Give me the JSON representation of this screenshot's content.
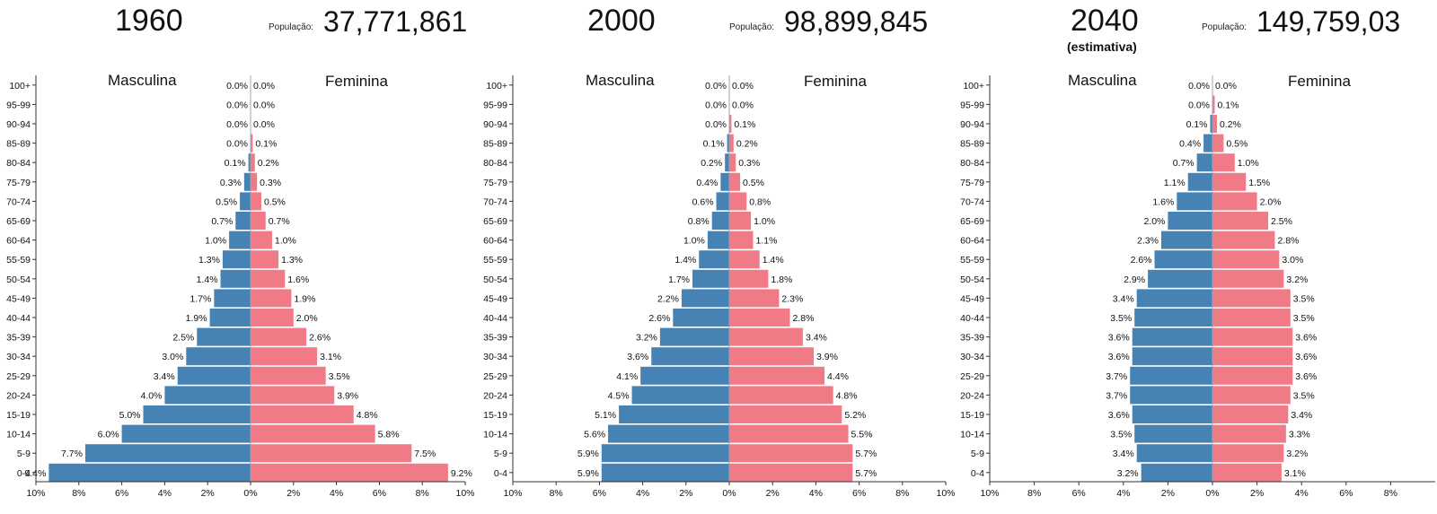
{
  "population_label": "População:",
  "colors": {
    "male": "#4682b4",
    "female": "#f07a86",
    "axis": "#333333"
  },
  "chart_data": [
    {
      "type": "bar",
      "title": "1960",
      "subtitle": "",
      "population": "37,771,861",
      "series": [
        {
          "name": "Masculina",
          "values": [
            9.4,
            7.7,
            6.0,
            5.0,
            4.0,
            3.4,
            3.0,
            2.5,
            1.9,
            1.7,
            1.4,
            1.3,
            1.0,
            0.7,
            0.5,
            0.3,
            0.1,
            0.0,
            0.0,
            0.0,
            0.0
          ],
          "labels": [
            "9.4%",
            "7.7%",
            "6.0%",
            "5.0%",
            "4.0%",
            "3.4%",
            "3.0%",
            "2.5%",
            "1.9%",
            "1.7%",
            "1.4%",
            "1.3%",
            "1.0%",
            "0.7%",
            "0.5%",
            "0.3%",
            "0.1%",
            "0.0%",
            "0.0%",
            "0.0%",
            "0.0%"
          ]
        },
        {
          "name": "Feminina",
          "values": [
            9.2,
            7.5,
            5.8,
            4.8,
            3.9,
            3.5,
            3.1,
            2.6,
            2.0,
            1.9,
            1.6,
            1.3,
            1.0,
            0.7,
            0.5,
            0.3,
            0.2,
            0.1,
            0.0,
            0.0,
            0.0
          ],
          "labels": [
            "9.2%",
            "7.5%",
            "5.8%",
            "4.8%",
            "3.9%",
            "3.5%",
            "3.1%",
            "2.6%",
            "2.0%",
            "1.9%",
            "1.6%",
            "1.3%",
            "1.0%",
            "0.7%",
            "0.5%",
            "0.3%",
            "0.2%",
            "0.1%",
            "0.0%",
            "0.0%",
            "0.0%"
          ]
        }
      ],
      "x_ticks": [
        "10%",
        "8%",
        "6%",
        "4%",
        "2%",
        "0%",
        "2%",
        "4%",
        "6%",
        "8%",
        "10%"
      ],
      "xlim": [
        -10,
        10
      ]
    },
    {
      "type": "bar",
      "title": "2000",
      "subtitle": "",
      "population": "98,899,845",
      "series": [
        {
          "name": "Masculina",
          "values": [
            5.9,
            5.9,
            5.6,
            5.1,
            4.5,
            4.1,
            3.6,
            3.2,
            2.6,
            2.2,
            1.7,
            1.4,
            1.0,
            0.8,
            0.6,
            0.4,
            0.2,
            0.1,
            0.0,
            0.0,
            0.0
          ],
          "labels": [
            "5.9%",
            "5.9%",
            "5.6%",
            "5.1%",
            "4.5%",
            "4.1%",
            "3.6%",
            "3.2%",
            "2.6%",
            "2.2%",
            "1.7%",
            "1.4%",
            "1.0%",
            "0.8%",
            "0.6%",
            "0.4%",
            "0.2%",
            "0.1%",
            "0.0%",
            "0.0%",
            "0.0%"
          ]
        },
        {
          "name": "Feminina",
          "values": [
            5.7,
            5.7,
            5.5,
            5.2,
            4.8,
            4.4,
            3.9,
            3.4,
            2.8,
            2.3,
            1.8,
            1.4,
            1.1,
            1.0,
            0.8,
            0.5,
            0.3,
            0.2,
            0.1,
            0.0,
            0.0
          ],
          "labels": [
            "5.7%",
            "5.7%",
            "5.5%",
            "5.2%",
            "4.8%",
            "4.4%",
            "3.9%",
            "3.4%",
            "2.8%",
            "2.3%",
            "1.8%",
            "1.4%",
            "1.1%",
            "1.0%",
            "0.8%",
            "0.5%",
            "0.3%",
            "0.2%",
            "0.1%",
            "0.0%",
            "0.0%"
          ]
        }
      ],
      "x_ticks": [
        "10%",
        "8%",
        "6%",
        "4%",
        "2%",
        "0%",
        "2%",
        "4%",
        "6%",
        "8%",
        "10%"
      ],
      "xlim": [
        -10,
        10
      ]
    },
    {
      "type": "bar",
      "title": "2040",
      "subtitle": "(estimativa)",
      "population": "149,759,03",
      "series": [
        {
          "name": "Masculina",
          "values": [
            3.2,
            3.4,
            3.5,
            3.6,
            3.7,
            3.7,
            3.6,
            3.6,
            3.5,
            3.4,
            2.9,
            2.6,
            2.3,
            2.0,
            1.6,
            1.1,
            0.7,
            0.4,
            0.1,
            0.0,
            0.0
          ],
          "labels": [
            "3.2%",
            "3.4%",
            "3.5%",
            "3.6%",
            "3.7%",
            "3.7%",
            "3.6%",
            "3.6%",
            "3.5%",
            "3.4%",
            "2.9%",
            "2.6%",
            "2.3%",
            "2.0%",
            "1.6%",
            "1.1%",
            "0.7%",
            "0.4%",
            "0.1%",
            "0.0%",
            "0.0%"
          ]
        },
        {
          "name": "Feminina",
          "values": [
            3.1,
            3.2,
            3.3,
            3.4,
            3.5,
            3.6,
            3.6,
            3.6,
            3.5,
            3.5,
            3.2,
            3.0,
            2.8,
            2.5,
            2.0,
            1.5,
            1.0,
            0.5,
            0.2,
            0.1,
            0.0
          ],
          "labels": [
            "3.1%",
            "3.2%",
            "3.3%",
            "3.4%",
            "3.5%",
            "3.6%",
            "3.6%",
            "3.6%",
            "3.5%",
            "3.5%",
            "3.2%",
            "3.0%",
            "2.8%",
            "2.5%",
            "2.0%",
            "1.5%",
            "1.0%",
            "0.5%",
            "0.2%",
            "0.1%",
            "0.0%"
          ]
        }
      ],
      "x_ticks": [
        "10%",
        "8%",
        "6%",
        "4%",
        "2%",
        "0%",
        "2%",
        "4%",
        "6%",
        "8%"
      ],
      "xlim": [
        -10,
        10
      ]
    }
  ],
  "age_groups": [
    "0-4",
    "5-9",
    "10-14",
    "15-19",
    "20-24",
    "25-29",
    "30-34",
    "35-39",
    "40-44",
    "45-49",
    "50-54",
    "55-59",
    "60-64",
    "65-69",
    "70-74",
    "75-79",
    "80-84",
    "85-89",
    "90-94",
    "95-99",
    "100+"
  ]
}
